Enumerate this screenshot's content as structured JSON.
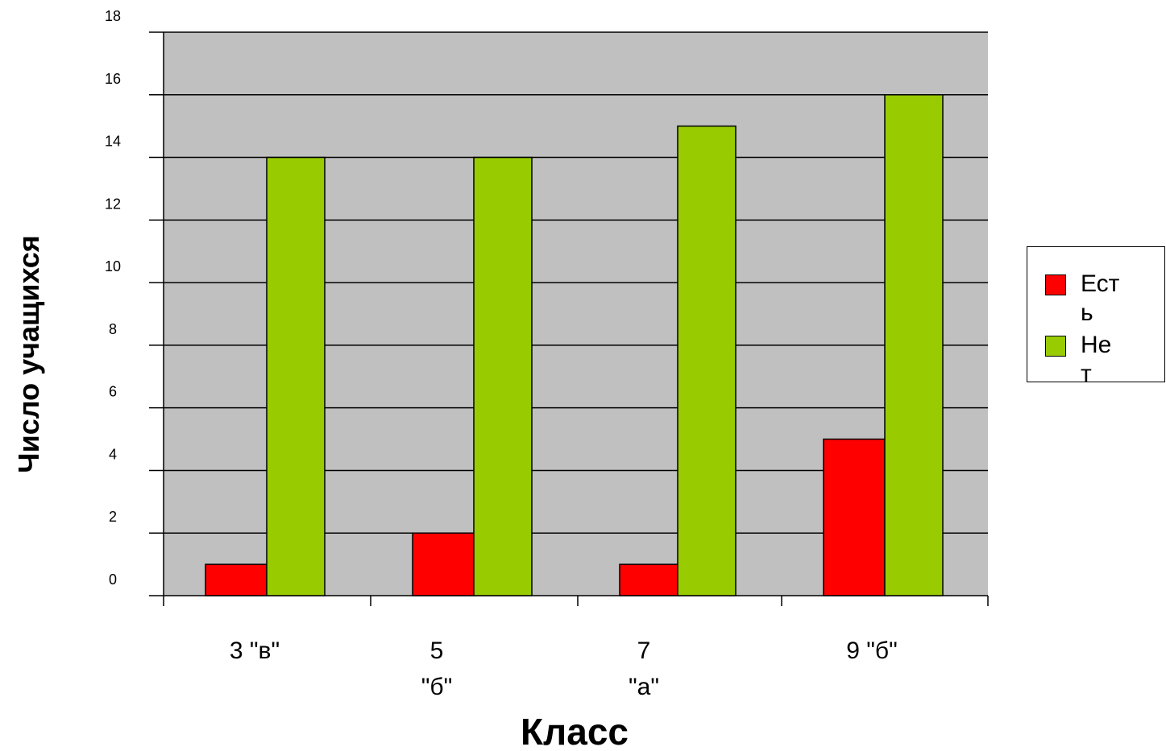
{
  "chart_data": {
    "type": "bar",
    "ylabel": "Число учащихся",
    "xlabel": "Класс",
    "categories": [
      "3 \"в\"",
      "5 \"б\"",
      "7 \"а\"",
      "9 \"б\""
    ],
    "series": [
      {
        "name": "Есть",
        "color": "#ff0000",
        "values": [
          1,
          2,
          1,
          5
        ]
      },
      {
        "name": "Нет",
        "color": "#99cc00",
        "values": [
          14,
          14,
          15,
          16
        ]
      }
    ],
    "ylim": [
      0,
      18
    ],
    "yticks": [
      "0",
      "2",
      "4",
      "6",
      "8",
      "10",
      "12",
      "14",
      "16",
      "18"
    ],
    "grid": true,
    "plot_background": "#c0c0c0",
    "legend_position": "right"
  },
  "legend": {
    "items": [
      {
        "label": "Есть",
        "color": "#ff0000"
      },
      {
        "label": "Нет",
        "color": "#99cc00"
      }
    ]
  }
}
